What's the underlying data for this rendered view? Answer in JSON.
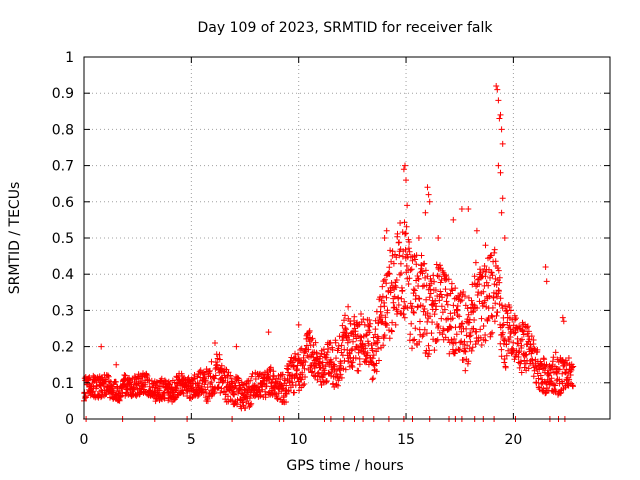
{
  "chart_data": {
    "type": "scatter",
    "title": "Day 109 of 2023, SRMTID for receiver falk",
    "xlabel": "GPS time / hours",
    "ylabel": "SRMTID / TECUs",
    "xlim": [
      0,
      24.5
    ],
    "ylim": [
      0,
      1
    ],
    "x_ticks": [
      0,
      5,
      10,
      15,
      20
    ],
    "x_tick_labels": [
      "0",
      "5",
      "10",
      "15",
      "20"
    ],
    "y_ticks": [
      0,
      0.1,
      0.2,
      0.3,
      0.4,
      0.5,
      0.6,
      0.7,
      0.8,
      0.9,
      1
    ],
    "y_tick_labels": [
      "0",
      "0.1",
      "0.2",
      "0.3",
      "0.4",
      "0.5",
      "0.6",
      "0.7",
      "0.8",
      "0.9",
      "1"
    ],
    "grid": true,
    "marker": "+",
    "series": [
      {
        "name": "SRMTID",
        "color": "#ff0000",
        "envelope": {
          "x": [
            0.0,
            1.0,
            2.0,
            3.0,
            4.0,
            5.0,
            5.5,
            6.0,
            6.5,
            7.0,
            8.0,
            9.0,
            9.5,
            10.0,
            10.5,
            11.0,
            11.5,
            12.0,
            12.5,
            13.0,
            13.5,
            14.0,
            14.5,
            15.0,
            15.5,
            16.0,
            16.5,
            17.0,
            17.5,
            18.0,
            18.5,
            19.0,
            19.5,
            20.0,
            20.5,
            21.0,
            21.5,
            22.0,
            22.5,
            22.8
          ],
          "mid": [
            0.08,
            0.09,
            0.09,
            0.09,
            0.08,
            0.09,
            0.1,
            0.12,
            0.1,
            0.07,
            0.09,
            0.09,
            0.11,
            0.15,
            0.16,
            0.14,
            0.16,
            0.2,
            0.2,
            0.19,
            0.21,
            0.33,
            0.36,
            0.37,
            0.35,
            0.31,
            0.29,
            0.28,
            0.27,
            0.29,
            0.3,
            0.32,
            0.3,
            0.22,
            0.2,
            0.14,
            0.13,
            0.14,
            0.12,
            0.1
          ],
          "amp": [
            0.03,
            0.03,
            0.03,
            0.03,
            0.03,
            0.03,
            0.04,
            0.06,
            0.05,
            0.04,
            0.04,
            0.04,
            0.05,
            0.06,
            0.06,
            0.05,
            0.06,
            0.08,
            0.08,
            0.07,
            0.08,
            0.12,
            0.13,
            0.14,
            0.13,
            0.12,
            0.11,
            0.11,
            0.1,
            0.11,
            0.12,
            0.13,
            0.11,
            0.07,
            0.07,
            0.05,
            0.05,
            0.06,
            0.04,
            0.04
          ]
        },
        "outliers": [
          [
            0.8,
            0.2
          ],
          [
            1.5,
            0.15
          ],
          [
            6.1,
            0.21
          ],
          [
            7.1,
            0.2
          ],
          [
            8.6,
            0.24
          ],
          [
            10.0,
            0.26
          ],
          [
            12.3,
            0.31
          ],
          [
            12.9,
            0.29
          ],
          [
            14.0,
            0.5
          ],
          [
            14.1,
            0.52
          ],
          [
            14.9,
            0.69
          ],
          [
            14.95,
            0.7
          ],
          [
            15.0,
            0.66
          ],
          [
            15.05,
            0.59
          ],
          [
            15.6,
            0.5
          ],
          [
            15.9,
            0.57
          ],
          [
            16.0,
            0.64
          ],
          [
            16.05,
            0.62
          ],
          [
            16.1,
            0.6
          ],
          [
            16.5,
            0.5
          ],
          [
            17.2,
            0.55
          ],
          [
            17.6,
            0.58
          ],
          [
            17.9,
            0.58
          ],
          [
            18.3,
            0.52
          ],
          [
            18.7,
            0.48
          ],
          [
            19.2,
            0.92
          ],
          [
            19.25,
            0.91
          ],
          [
            19.3,
            0.88
          ],
          [
            19.35,
            0.83
          ],
          [
            19.4,
            0.84
          ],
          [
            19.45,
            0.8
          ],
          [
            19.5,
            0.76
          ],
          [
            19.3,
            0.7
          ],
          [
            19.4,
            0.68
          ],
          [
            19.5,
            0.61
          ],
          [
            19.45,
            0.57
          ],
          [
            19.6,
            0.5
          ],
          [
            21.5,
            0.42
          ],
          [
            21.55,
            0.38
          ],
          [
            22.3,
            0.28
          ],
          [
            22.35,
            0.27
          ]
        ],
        "zero_points": [
          0.1,
          1.8,
          3.3,
          4.8,
          6.9,
          9.1,
          9.3,
          11.2,
          11.5,
          12.1,
          12.6,
          13.0,
          13.5,
          14.2,
          14.9,
          15.3,
          16.1,
          17.0,
          17.3,
          17.6,
          18.2,
          18.6,
          19.1,
          20.1,
          21.7,
          22.1,
          22.4
        ]
      }
    ]
  }
}
